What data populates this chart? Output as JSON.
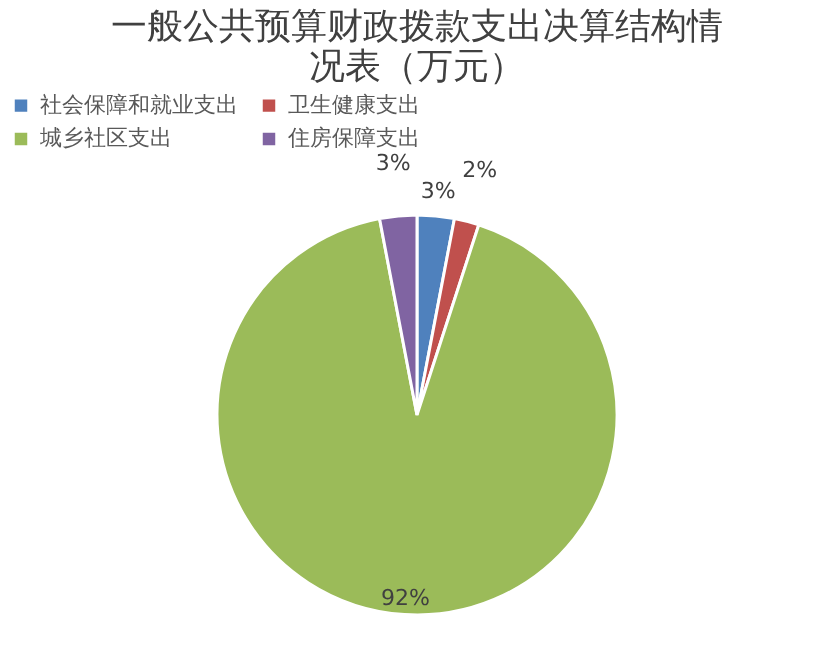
{
  "chart_data": {
    "type": "pie",
    "title": "一般公共预算财政拨款支出决算结构情况表（万元）",
    "categories": [
      "社会保障和就业支出",
      "卫生健康支出",
      "城乡社区支出",
      "住房保障支出"
    ],
    "values": [
      3,
      2,
      92,
      3
    ],
    "colors": [
      "#4f81bd",
      "#c0504d",
      "#9bbb59",
      "#8064a2"
    ],
    "value_labels": [
      "3%",
      "2%",
      "92%",
      "3%"
    ],
    "legend": "top"
  }
}
